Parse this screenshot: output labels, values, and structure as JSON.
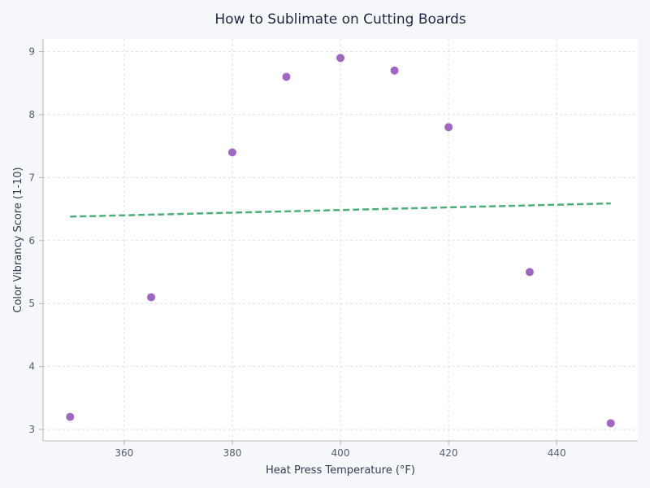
{
  "chart_data": {
    "type": "scatter",
    "title": "How to Sublimate on Cutting Boards",
    "xlabel": "Heat Press Temperature (°F)",
    "ylabel": "Color Vibrancy Score (1-10)",
    "xlim": [
      345,
      455
    ],
    "ylim": [
      2.82,
      9.2
    ],
    "xticks": [
      360,
      380,
      400,
      420,
      440
    ],
    "yticks": [
      3,
      4,
      5,
      6,
      7,
      8,
      9
    ],
    "grid": true,
    "series": [
      {
        "points": [
          {
            "x": 350,
            "y": 3.2
          },
          {
            "x": 365,
            "y": 5.1
          },
          {
            "x": 380,
            "y": 7.4
          },
          {
            "x": 390,
            "y": 8.6
          },
          {
            "x": 400,
            "y": 8.9
          },
          {
            "x": 410,
            "y": 8.7
          },
          {
            "x": 420,
            "y": 7.8
          },
          {
            "x": 435,
            "y": 5.5
          },
          {
            "x": 450,
            "y": 3.1
          }
        ],
        "color": "#a066c0"
      }
    ],
    "trendline": {
      "x": [
        350,
        450
      ],
      "y": [
        6.38,
        6.59
      ],
      "color": "#4caf7a",
      "style": "dashed"
    }
  }
}
